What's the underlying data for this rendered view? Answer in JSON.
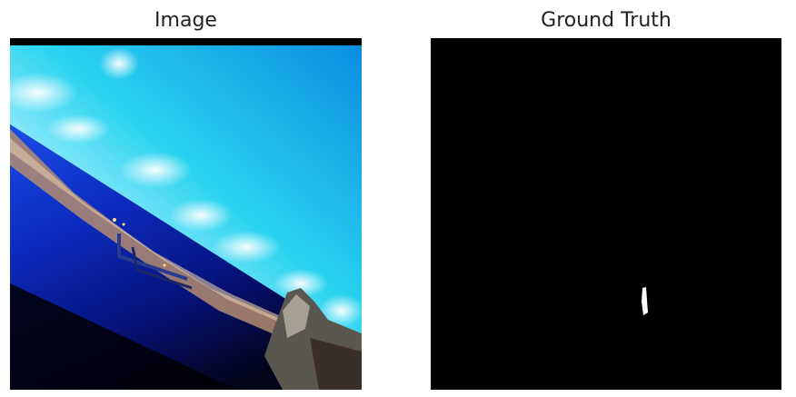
{
  "figure": {
    "panels": [
      {
        "title": "Image"
      },
      {
        "title": "Ground Truth"
      }
    ]
  },
  "image_panel": {
    "content": "rotated aerial photo: bright cyan sky with clouds, coastline city, deep blue sea, rocky headland",
    "colors": {
      "sky_light": "#bff3ff",
      "sky_mid": "#2ad4f0",
      "sky_deep": "#0a8de0",
      "sea_top": "#0d3fd8",
      "sea_mid": "#0a1fa8",
      "sea_dark": "#03062a",
      "city": "#c49a7a"
    }
  },
  "ground_truth_panel": {
    "background": "#000000",
    "mask_color": "#ffffff"
  }
}
